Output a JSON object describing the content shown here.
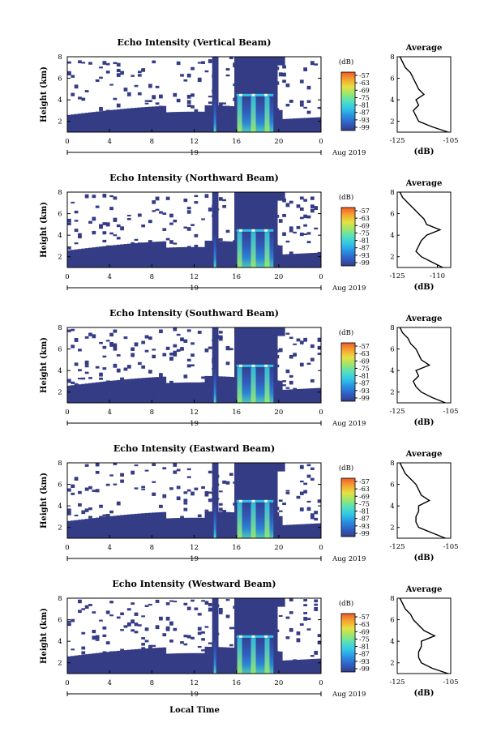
{
  "figure": {
    "xlabel": "Local Time",
    "date_label": "Aug 2019",
    "colorbar_unit": "(dB)",
    "colorbar_ticks": [
      "-57",
      "-63",
      "-69",
      "-75",
      "-81",
      "-87",
      "-93",
      "-99"
    ],
    "avg_title": "Average",
    "avg_xlabel": "(dB)",
    "colormap": [
      "#353c86",
      "#2f5fc4",
      "#2a8fe0",
      "#30c4e8",
      "#52e0c0",
      "#9ae66d",
      "#e6e040",
      "#f5a430",
      "#f05a28"
    ]
  },
  "chart_data": [
    {
      "type": "heatmap",
      "title": "Echo Intensity (Vertical Beam)",
      "ylabel": "Height (km)",
      "xlabel": "Local Time",
      "x_ticks": [
        "0",
        "4",
        "8",
        "12",
        "16",
        "20",
        "0"
      ],
      "x_day_label": "19",
      "x_range_hours": [
        0,
        24
      ],
      "y_ticks": [
        "2",
        "4",
        "6",
        "8"
      ],
      "ylim_km": [
        1,
        8
      ],
      "colorbar": {
        "unit": "dB",
        "range": [
          -99,
          -57
        ],
        "ticks": [
          -57,
          -63,
          -69,
          -75,
          -81,
          -87,
          -93,
          -99
        ]
      },
      "average_profile": {
        "title": "Average",
        "xlabel": "(dB)",
        "x_ticks": [
          "-125",
          "-105"
        ],
        "xlim_db": [
          -125,
          -105
        ],
        "y_ticks": [
          "2",
          "4",
          "6",
          "8"
        ],
        "height_km": [
          1.0,
          1.5,
          2.0,
          2.5,
          3.0,
          3.5,
          4.0,
          4.5,
          5.0,
          5.5,
          6.0,
          6.5,
          7.0,
          7.5,
          8.0
        ],
        "values_db": [
          -106,
          -112,
          -117,
          -118,
          -119,
          -117,
          -118,
          -115,
          -117,
          -118,
          -119,
          -120,
          -122,
          -123,
          -124
        ]
      }
    },
    {
      "type": "heatmap",
      "title": "Echo Intensity (Northward Beam)",
      "ylabel": "Height (km)",
      "xlabel": "Local Time",
      "x_ticks": [
        "0",
        "4",
        "8",
        "12",
        "16",
        "20",
        "0"
      ],
      "x_day_label": "19",
      "x_range_hours": [
        0,
        24
      ],
      "y_ticks": [
        "2",
        "4",
        "6",
        "8"
      ],
      "ylim_km": [
        1,
        8
      ],
      "colorbar": {
        "unit": "dB",
        "range": [
          -99,
          -57
        ],
        "ticks": [
          -57,
          -63,
          -69,
          -75,
          -81,
          -87,
          -93,
          -99
        ]
      },
      "average_profile": {
        "title": "Average",
        "xlabel": "(dB)",
        "x_ticks": [
          "-125",
          "-110"
        ],
        "xlim_db": [
          -125,
          -105
        ],
        "y_ticks": [
          "2",
          "4",
          "6",
          "8"
        ],
        "height_km": [
          1.0,
          1.5,
          2.0,
          2.5,
          3.0,
          3.5,
          4.0,
          4.5,
          5.0,
          5.5,
          6.0,
          6.5,
          7.0,
          7.5,
          8.0
        ],
        "values_db": [
          -108,
          -112,
          -116,
          -118,
          -117,
          -116,
          -114,
          -109,
          -114,
          -115,
          -117,
          -119,
          -121,
          -123,
          -124
        ]
      }
    },
    {
      "type": "heatmap",
      "title": "Echo Intensity (Southward Beam)",
      "ylabel": "Height (km)",
      "xlabel": "Local Time",
      "x_ticks": [
        "0",
        "4",
        "8",
        "12",
        "16",
        "20",
        "0"
      ],
      "x_day_label": "19",
      "x_range_hours": [
        0,
        24
      ],
      "y_ticks": [
        "2",
        "4",
        "6",
        "8"
      ],
      "ylim_km": [
        1,
        8
      ],
      "colorbar": {
        "unit": "dB",
        "range": [
          -99,
          -57
        ],
        "ticks": [
          -57,
          -63,
          -69,
          -75,
          -81,
          -87,
          -93,
          -99
        ]
      },
      "average_profile": {
        "title": "Average",
        "xlabel": "(dB)",
        "x_ticks": [
          "-125",
          "-105"
        ],
        "xlim_db": [
          -125,
          -105
        ],
        "y_ticks": [
          "2",
          "4",
          "6",
          "8"
        ],
        "height_km": [
          1.0,
          1.5,
          2.0,
          2.5,
          3.0,
          3.5,
          4.0,
          4.5,
          5.0,
          5.5,
          6.0,
          6.5,
          7.0,
          7.5,
          8.0
        ],
        "values_db": [
          -107,
          -112,
          -116,
          -118,
          -119,
          -117,
          -118,
          -113,
          -116,
          -117,
          -118,
          -120,
          -121,
          -123,
          -124
        ]
      }
    },
    {
      "type": "heatmap",
      "title": "Echo Intensity (Eastward Beam)",
      "ylabel": "Height (km)",
      "xlabel": "Local Time",
      "x_ticks": [
        "0",
        "4",
        "8",
        "12",
        "16",
        "20",
        "0"
      ],
      "x_day_label": "19",
      "x_range_hours": [
        0,
        24
      ],
      "y_ticks": [
        "2",
        "4",
        "6",
        "8"
      ],
      "ylim_km": [
        1,
        8
      ],
      "colorbar": {
        "unit": "dB",
        "range": [
          -99,
          -57
        ],
        "ticks": [
          -57,
          -63,
          -69,
          -75,
          -81,
          -87,
          -93,
          -99
        ]
      },
      "average_profile": {
        "title": "Average",
        "xlabel": "(dB)",
        "x_ticks": [
          "-125",
          "-105"
        ],
        "xlim_db": [
          -125,
          -105
        ],
        "y_ticks": [
          "2",
          "4",
          "6",
          "8"
        ],
        "height_km": [
          1.0,
          1.5,
          2.0,
          2.5,
          3.0,
          3.5,
          4.0,
          4.5,
          5.0,
          5.5,
          6.0,
          6.5,
          7.0,
          7.5,
          8.0
        ],
        "values_db": [
          -107,
          -112,
          -117,
          -118,
          -118,
          -117,
          -117,
          -113,
          -116,
          -117,
          -118,
          -120,
          -122,
          -123,
          -124
        ]
      }
    },
    {
      "type": "heatmap",
      "title": "Echo Intensity (Westward Beam)",
      "ylabel": "Height (km)",
      "xlabel": "Local Time",
      "x_ticks": [
        "0",
        "4",
        "8",
        "12",
        "16",
        "20",
        "0"
      ],
      "x_day_label": "19",
      "x_range_hours": [
        0,
        24
      ],
      "y_ticks": [
        "2",
        "4",
        "6",
        "8"
      ],
      "ylim_km": [
        1,
        8
      ],
      "colorbar": {
        "unit": "dB",
        "range": [
          -99,
          -57
        ],
        "ticks": [
          -57,
          -63,
          -69,
          -75,
          -81,
          -87,
          -93,
          -99
        ]
      },
      "average_profile": {
        "title": "Average",
        "xlabel": "(dB)",
        "x_ticks": [
          "-125",
          "-105"
        ],
        "xlim_db": [
          -125,
          -105
        ],
        "y_ticks": [
          "2",
          "4",
          "6",
          "8"
        ],
        "height_km": [
          1.0,
          1.5,
          2.0,
          2.5,
          3.0,
          3.5,
          4.0,
          4.5,
          5.0,
          5.5,
          6.0,
          6.5,
          7.0,
          7.5,
          8.0
        ],
        "values_db": [
          -106,
          -112,
          -116,
          -117,
          -117,
          -116,
          -116,
          -111,
          -115,
          -117,
          -119,
          -120,
          -122,
          -123,
          -124
        ]
      }
    }
  ]
}
